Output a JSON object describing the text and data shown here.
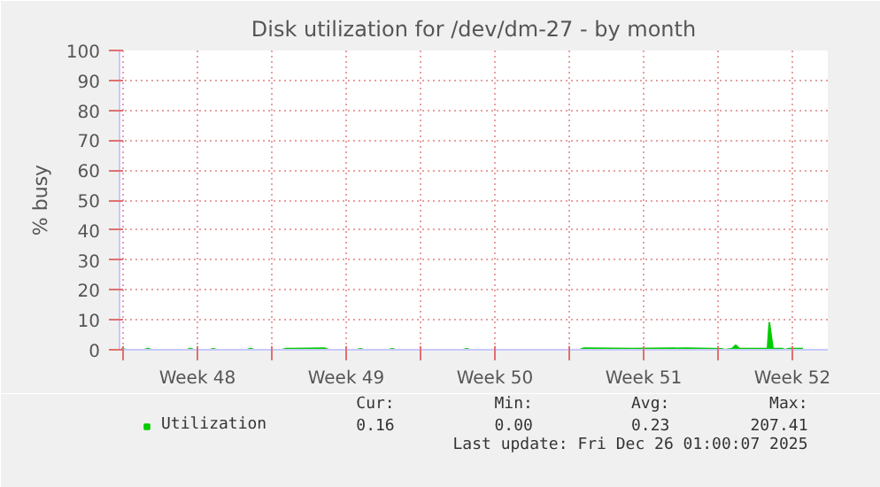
{
  "chart_data": {
    "type": "area",
    "title": "Disk utilization for /dev/dm-27 - by month",
    "ylabel": "% busy",
    "x": [
      "2025-11-23T22:00",
      "2025-11-24T04:00",
      "2025-11-25T00:00",
      "2025-11-25T04:00",
      "2025-11-25T08:00",
      "2025-11-27T00:00",
      "2025-11-27T04:00",
      "2025-11-27T08:00",
      "2025-11-28T02:00",
      "2025-11-28T06:00",
      "2025-11-28T10:00",
      "2025-11-29T20:00",
      "2025-11-30T00:00",
      "2025-11-30T04:00",
      "2025-12-01T12:00",
      "2025-12-01T16:00",
      "2025-12-02T00:00",
      "2025-12-03T12:00",
      "2025-12-03T16:00",
      "2025-12-05T00:00",
      "2025-12-05T04:00",
      "2025-12-05T08:00",
      "2025-12-06T12:00",
      "2025-12-06T16:00",
      "2025-12-06T20:00",
      "2025-12-10T00:00",
      "2025-12-10T04:00",
      "2025-12-10T08:00",
      "2025-12-15T12:00",
      "2025-12-15T16:00",
      "2025-12-18T00:00",
      "2025-12-20T12:00",
      "2025-12-22T04:00",
      "2025-12-22T08:00",
      "2025-12-22T16:00",
      "2025-12-22T20:00",
      "2025-12-23T00:00",
      "2025-12-24T08:00",
      "2025-12-24T10:00",
      "2025-12-24T14:00",
      "2025-12-25T00:00",
      "2025-12-25T04:00",
      "2025-12-25T08:00",
      "2025-12-26T00:00"
    ],
    "series": [
      {
        "name": "Utilization",
        "color": "#00cc00",
        "values": [
          0.3,
          0,
          0,
          0.4,
          0,
          0,
          0.4,
          0,
          0,
          0.3,
          0,
          0,
          0.4,
          0,
          0,
          0.4,
          0.4,
          0.5,
          0,
          0,
          0.3,
          0,
          0,
          0.3,
          0,
          0,
          0.3,
          0,
          0,
          0.5,
          0.4,
          0.5,
          0.3,
          0,
          0.4,
          1.5,
          0.4,
          0.4,
          9,
          0.4,
          0.4,
          0,
          0.4,
          0.4
        ]
      }
    ],
    "xlim": [
      "2025-11-23T20:00",
      "2025-12-27T04:00"
    ],
    "xticks": [
      {
        "value": "2025-11-24T00:00",
        "label": null
      },
      {
        "value": "2025-11-27T12:00",
        "label": "Week 48"
      },
      {
        "value": "2025-12-01T00:00",
        "label": null
      },
      {
        "value": "2025-12-04T12:00",
        "label": "Week 49"
      },
      {
        "value": "2025-12-08T00:00",
        "label": null
      },
      {
        "value": "2025-12-11T12:00",
        "label": "Week 50"
      },
      {
        "value": "2025-12-15T00:00",
        "label": null
      },
      {
        "value": "2025-12-18T12:00",
        "label": "Week 51"
      },
      {
        "value": "2025-12-22T00:00",
        "label": null
      },
      {
        "value": "2025-12-25T12:00",
        "label": "Week 52"
      }
    ],
    "ylim": [
      0,
      100
    ],
    "yticks": [
      0,
      10,
      20,
      30,
      40,
      50,
      60,
      70,
      80,
      90,
      100
    ],
    "grid": true,
    "legend": "bottom",
    "annotations": [
      "Cur:",
      "Min:",
      "Avg:",
      "Max:",
      "0.16",
      "0.00",
      "0.23",
      "207.41",
      "Last update: Fri Dec 26 01:00:07 2025"
    ]
  }
}
